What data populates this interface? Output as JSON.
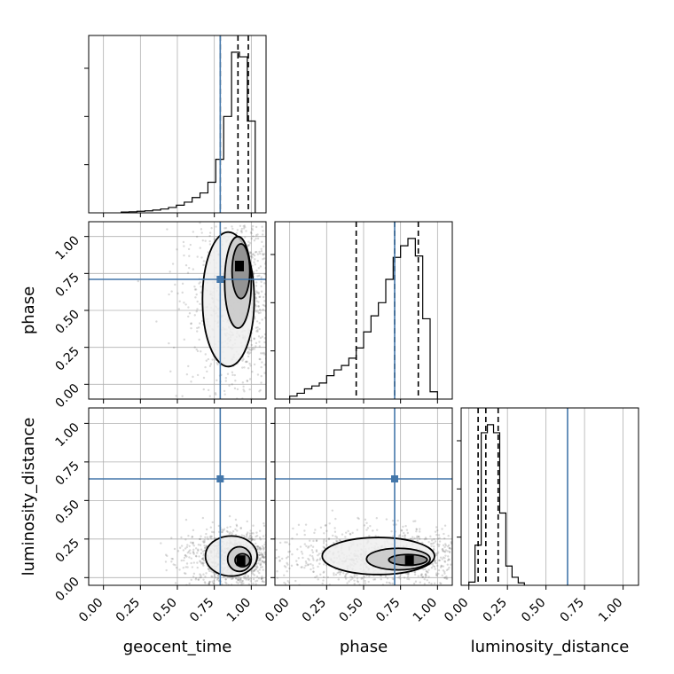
{
  "chart_data": {
    "type": "corner",
    "parameters": [
      "geocent_time",
      "phase",
      "luminosity_distance"
    ],
    "axis_labels": [
      "geocent_time",
      "phase",
      "luminosity_distance"
    ],
    "ranges": [
      [
        -0.1,
        1.1
      ],
      [
        -0.1,
        1.1
      ],
      [
        -0.05,
        1.1
      ]
    ],
    "ticks": [
      0.0,
      0.25,
      0.5,
      0.75,
      1.0
    ],
    "tick_labels": [
      "0.00",
      "0.25",
      "0.50",
      "0.75",
      "1.00"
    ],
    "truths": [
      0.79,
      0.71,
      0.64
    ],
    "truth_color": "#4477aa",
    "grid": true,
    "histograms": [
      {
        "parameter": "geocent_time",
        "bin_edges": [
          0.12,
          0.1733,
          0.2267,
          0.28,
          0.3333,
          0.3867,
          0.44,
          0.4933,
          0.5467,
          0.6,
          0.6533,
          0.7067,
          0.76,
          0.8133,
          0.8667,
          0.92,
          0.9733,
          1.0267
        ],
        "counts": [
          0.005,
          0.007,
          0.01,
          0.013,
          0.018,
          0.025,
          0.035,
          0.05,
          0.07,
          0.1,
          0.13,
          0.2,
          0.35,
          0.63,
          1.05,
          1.02,
          0.6
        ],
        "quantiles": [
          0.79,
          0.91,
          0.98
        ]
      },
      {
        "parameter": "phase",
        "bin_edges": [
          0.0,
          0.05,
          0.1,
          0.15,
          0.2,
          0.25,
          0.3,
          0.35,
          0.4,
          0.45,
          0.5,
          0.55,
          0.6,
          0.65,
          0.7,
          0.75,
          0.8,
          0.85,
          0.9,
          0.95,
          1.0
        ],
        "counts": [
          0.02,
          0.04,
          0.07,
          0.09,
          0.11,
          0.16,
          0.2,
          0.23,
          0.28,
          0.35,
          0.46,
          0.57,
          0.66,
          0.82,
          0.97,
          1.05,
          1.1,
          0.98,
          0.55,
          0.05
        ],
        "quantiles": [
          0.45,
          0.71,
          0.87
        ]
      },
      {
        "parameter": "luminosity_distance",
        "bin_edges": [
          0.0,
          0.04,
          0.08,
          0.12,
          0.16,
          0.2,
          0.24,
          0.28,
          0.32,
          0.36
        ],
        "counts": [
          0.02,
          0.25,
          0.95,
          1.0,
          0.95,
          0.45,
          0.12,
          0.05,
          0.015
        ],
        "quantiles": [
          0.06,
          0.11,
          0.19
        ]
      }
    ],
    "scatter_panels": [
      {
        "x": "geocent_time",
        "y": "phase",
        "peak": [
          0.92,
          0.8
        ],
        "contour_levels": [
          {
            "center": [
              0.93,
              0.78
            ],
            "x_extent": [
              0.87,
              0.99
            ],
            "y_extent": [
              0.58,
              0.95
            ]
          },
          {
            "center": [
              0.925,
              0.7
            ],
            "x_extent": [
              0.82,
              1.0
            ],
            "y_extent": [
              0.38,
              1.0
            ]
          },
          {
            "center": [
              0.91,
              0.6
            ],
            "x_extent": [
              0.67,
              1.02
            ],
            "y_extent": [
              0.12,
              1.03
            ]
          }
        ]
      },
      {
        "x": "geocent_time",
        "y": "luminosity_distance",
        "peak": [
          0.93,
          0.11
        ],
        "contour_levels": [
          {
            "center": [
              0.935,
              0.11
            ],
            "x_extent": [
              0.89,
              0.99
            ],
            "y_extent": [
              0.07,
              0.155
            ]
          },
          {
            "center": [
              0.93,
              0.12
            ],
            "x_extent": [
              0.84,
              1.0
            ],
            "y_extent": [
              0.04,
              0.2
            ]
          },
          {
            "center": [
              0.91,
              0.125
            ],
            "x_extent": [
              0.69,
              1.04
            ],
            "y_extent": [
              0.01,
              0.27
            ]
          }
        ]
      },
      {
        "x": "phase",
        "y": "luminosity_distance",
        "peak": [
          0.81,
          0.11
        ],
        "contour_levels": [
          {
            "center": [
              0.81,
              0.11
            ],
            "x_extent": [
              0.67,
              0.93
            ],
            "y_extent": [
              0.08,
              0.15
            ]
          },
          {
            "center": [
              0.78,
              0.12
            ],
            "x_extent": [
              0.52,
              0.95
            ],
            "y_extent": [
              0.05,
              0.19
            ]
          },
          {
            "center": [
              0.68,
              0.13
            ],
            "x_extent": [
              0.22,
              0.98
            ],
            "y_extent": [
              0.02,
              0.26
            ]
          }
        ]
      }
    ]
  }
}
